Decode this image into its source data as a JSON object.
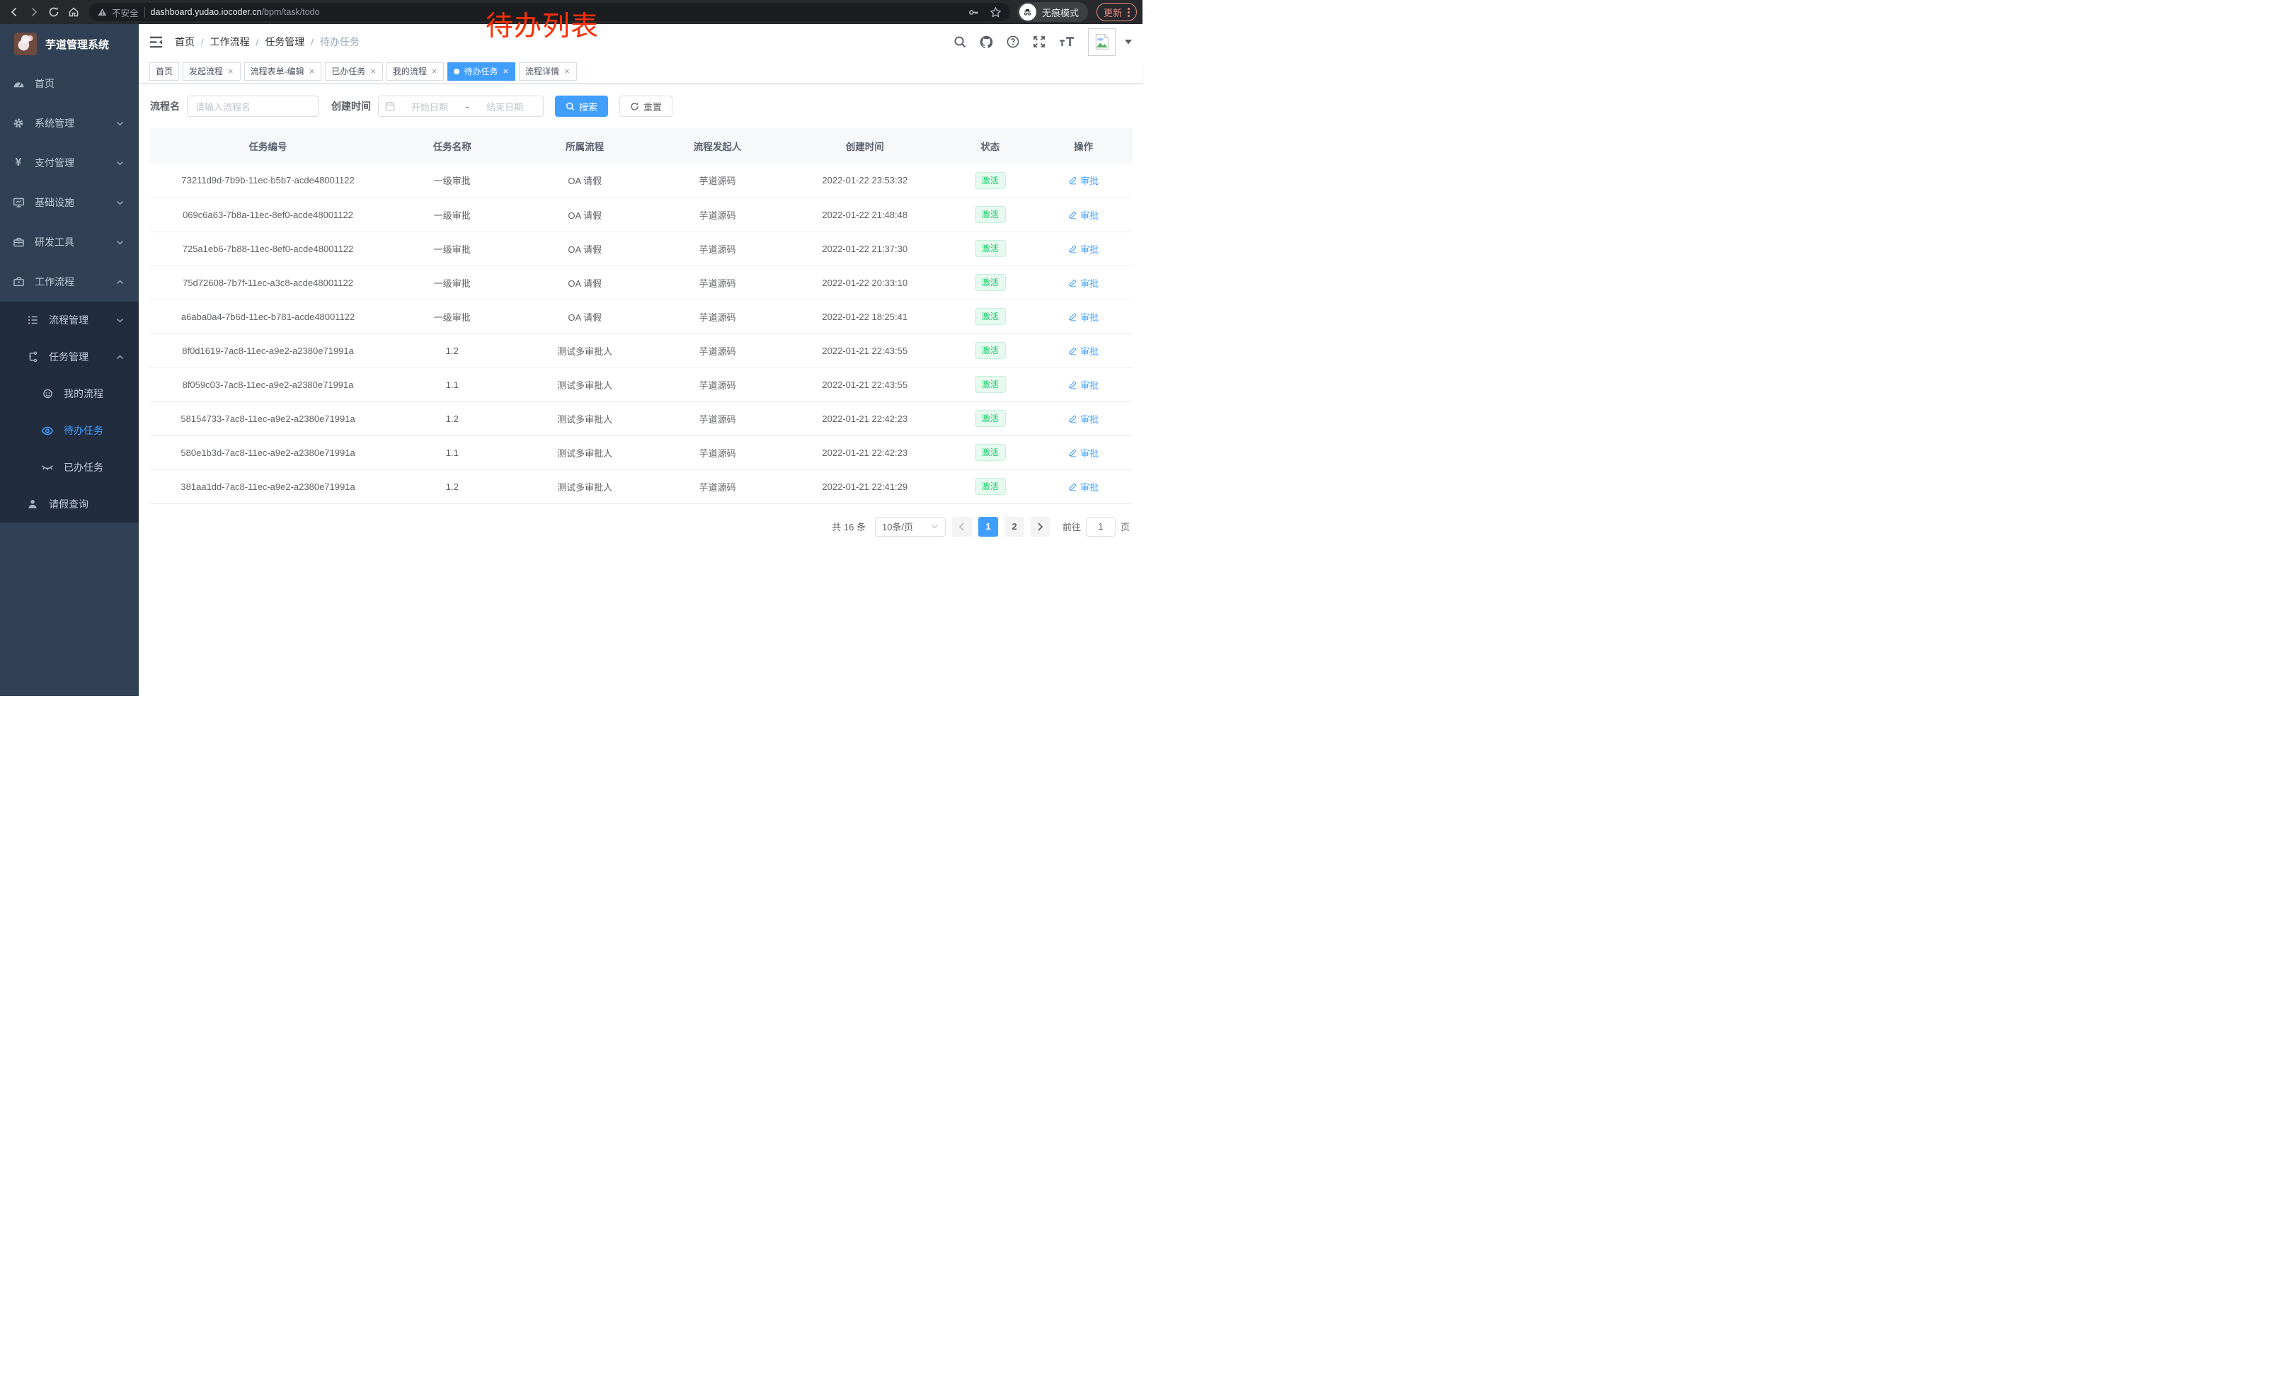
{
  "colors": {
    "accent": "#409eff",
    "success_text": "#13ce66",
    "annotation_red": "#fb2f07",
    "sidebar_bg": "#304156",
    "submenu_bg": "#212c3e"
  },
  "annotation": {
    "text": "待办列表"
  },
  "browser": {
    "security_label": "不安全",
    "url_domain": "dashboard.yudao.iocoder.cn",
    "url_path": "/bpm/task/todo",
    "incognito_label": "无痕模式",
    "update_label": "更新"
  },
  "sidebar": {
    "title": "芋道管理系统",
    "menu": [
      {
        "label": "首页",
        "icon": "gauge-icon",
        "level": 1
      },
      {
        "label": "系统管理",
        "icon": "gear-icon",
        "level": 1,
        "chevron": "down"
      },
      {
        "label": "支付管理",
        "icon": "yen-icon",
        "level": 1,
        "chevron": "down"
      },
      {
        "label": "基础设施",
        "icon": "monitor-icon",
        "level": 1,
        "chevron": "down"
      },
      {
        "label": "研发工具",
        "icon": "toolbox-icon",
        "level": 1,
        "chevron": "down"
      },
      {
        "label": "工作流程",
        "icon": "briefcase-icon",
        "level": 1,
        "chevron": "up"
      },
      {
        "label": "流程管理",
        "icon": "list-icon",
        "level": 2,
        "chevron": "down",
        "sub": true
      },
      {
        "label": "任务管理",
        "icon": "tree-icon",
        "level": 2,
        "chevron": "up",
        "sub": true
      },
      {
        "label": "我的流程",
        "icon": "face-icon",
        "level": 3,
        "sub": true
      },
      {
        "label": "待办任务",
        "icon": "eye-icon",
        "level": 3,
        "sub": true,
        "active": true
      },
      {
        "label": "已办任务",
        "icon": "eye-closed-icon",
        "level": 3,
        "sub": true
      },
      {
        "label": "请假查询",
        "icon": "user-icon",
        "level": 2,
        "sub": true
      }
    ]
  },
  "topbar": {
    "breadcrumb": [
      "首页",
      "工作流程",
      "任务管理",
      "待办任务"
    ],
    "breadcrumb_separator": "/",
    "icons": [
      "search-icon",
      "github-icon",
      "help-icon",
      "fullscreen-icon",
      "font-size-icon"
    ]
  },
  "tabs": [
    {
      "label": "首页",
      "closable": false,
      "active": false
    },
    {
      "label": "发起流程",
      "closable": true,
      "active": false
    },
    {
      "label": "流程表单-编辑",
      "closable": true,
      "active": false
    },
    {
      "label": "已办任务",
      "closable": true,
      "active": false
    },
    {
      "label": "我的流程",
      "closable": true,
      "active": false
    },
    {
      "label": "待办任务",
      "closable": true,
      "active": true
    },
    {
      "label": "流程详情",
      "closable": true,
      "active": false
    }
  ],
  "filters": {
    "name_label": "流程名",
    "name_placeholder": "请输入流程名",
    "time_label": "创建时间",
    "start_placeholder": "开始日期",
    "range_separator": "-",
    "end_placeholder": "结束日期",
    "search_label": "搜索",
    "reset_label": "重置"
  },
  "table": {
    "headers": [
      "任务编号",
      "任务名称",
      "所属流程",
      "流程发起人",
      "创建时间",
      "状态",
      "操作"
    ],
    "status_label": "激活",
    "action_label": "审批",
    "rows": [
      {
        "id": "73211d9d-7b9b-11ec-b5b7-acde48001122",
        "name": "一级审批",
        "process": "OA 请假",
        "starter": "芋道源码",
        "created": "2022-01-22 23:53:32"
      },
      {
        "id": "069c6a63-7b8a-11ec-8ef0-acde48001122",
        "name": "一级审批",
        "process": "OA 请假",
        "starter": "芋道源码",
        "created": "2022-01-22 21:48:48"
      },
      {
        "id": "725a1eb6-7b88-11ec-8ef0-acde48001122",
        "name": "一级审批",
        "process": "OA 请假",
        "starter": "芋道源码",
        "created": "2022-01-22 21:37:30"
      },
      {
        "id": "75d72608-7b7f-11ec-a3c8-acde48001122",
        "name": "一级审批",
        "process": "OA 请假",
        "starter": "芋道源码",
        "created": "2022-01-22 20:33:10"
      },
      {
        "id": "a6aba0a4-7b6d-11ec-b781-acde48001122",
        "name": "一级审批",
        "process": "OA 请假",
        "starter": "芋道源码",
        "created": "2022-01-22 18:25:41"
      },
      {
        "id": "8f0d1619-7ac8-11ec-a9e2-a2380e71991a",
        "name": "1.2",
        "process": "测试多审批人",
        "starter": "芋道源码",
        "created": "2022-01-21 22:43:55"
      },
      {
        "id": "8f059c03-7ac8-11ec-a9e2-a2380e71991a",
        "name": "1.1",
        "process": "测试多审批人",
        "starter": "芋道源码",
        "created": "2022-01-21 22:43:55"
      },
      {
        "id": "58154733-7ac8-11ec-a9e2-a2380e71991a",
        "name": "1.2",
        "process": "测试多审批人",
        "starter": "芋道源码",
        "created": "2022-01-21 22:42:23"
      },
      {
        "id": "580e1b3d-7ac8-11ec-a9e2-a2380e71991a",
        "name": "1.1",
        "process": "测试多审批人",
        "starter": "芋道源码",
        "created": "2022-01-21 22:42:23"
      },
      {
        "id": "381aa1dd-7ac8-11ec-a9e2-a2380e71991a",
        "name": "1.2",
        "process": "测试多审批人",
        "starter": "芋道源码",
        "created": "2022-01-21 22:41:29"
      }
    ]
  },
  "pagination": {
    "total": "共 16 条",
    "page_size": "10条/页",
    "pages": [
      "1",
      "2"
    ],
    "active_page": "1",
    "goto_label": "前往",
    "goto_value": "1",
    "goto_suffix": "页"
  }
}
